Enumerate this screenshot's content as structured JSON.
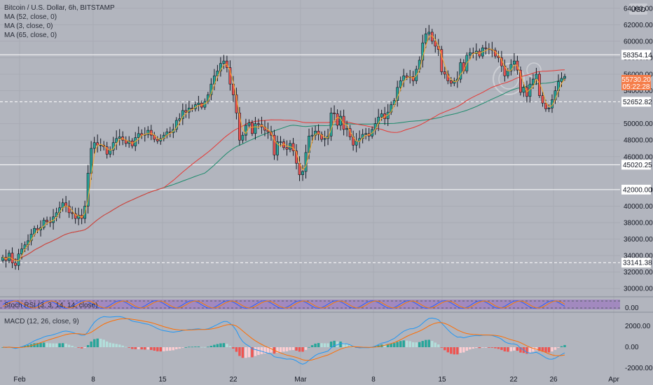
{
  "header": {
    "title": "Bitcoin / U.S. Dollar, 6h, BITSTAMP",
    "currency": "USD",
    "ma_labels": [
      "MA (52, close, 0)",
      "MA (3, close, 0)",
      "MA (65, close, 0)"
    ]
  },
  "stoch": {
    "label": "Stoch RSI (3, 3, 14, 14, close)",
    "tick": "0.00"
  },
  "macd": {
    "label": "MACD (12, 26, close, 9)",
    "ticks": [
      "2000.00",
      "0.00",
      "-2000.00"
    ]
  },
  "current": {
    "price": "55730.20",
    "countdown": "05:22:28"
  },
  "colors": {
    "up": "#26a69a",
    "down": "#ef5350",
    "ma52": "#e53935",
    "ma3": "#f9a825",
    "ma65": "#1b8a6b",
    "stoch_k": "#2962ff",
    "stoch_d": "#f57c00",
    "macd_line": "#2196f3",
    "signal_line": "#ff6d00",
    "current_tag": "#f57c48"
  },
  "chart_data": {
    "type": "candlestick",
    "price_axis": {
      "ylim": [
        29000,
        65000
      ],
      "ticks": [
        "64000.00",
        "62000.00",
        "60000.00",
        "58000.00",
        "56000.00",
        "54000.00",
        "50000.00",
        "48000.00",
        "46000.00",
        "42000.00",
        "40000.00",
        "38000.00",
        "36000.00",
        "34000.00",
        "32000.00",
        "30000.00"
      ]
    },
    "x_ticks": [
      "Feb",
      "8",
      "15",
      "22",
      "Mar",
      "8",
      "15",
      "22",
      "26",
      "Apr"
    ],
    "horizontal_levels": [
      {
        "value": 58354.14,
        "label": "58354.14",
        "style": "solid"
      },
      {
        "value": 52652.82,
        "label": "52652.82",
        "style": "dashed"
      },
      {
        "value": 45020.25,
        "label": "45020.25",
        "style": "solid"
      },
      {
        "value": 42000.0,
        "label": "42000.00",
        "style": "solid"
      },
      {
        "value": 33141.38,
        "label": "33141.38",
        "style": "dashed"
      }
    ],
    "closes": [
      33800,
      33400,
      34300,
      33100,
      32800,
      34200,
      34800,
      35300,
      35800,
      36600,
      37300,
      37100,
      37400,
      38300,
      38100,
      38000,
      38700,
      39200,
      39800,
      40400,
      40000,
      39200,
      39100,
      38500,
      38900,
      38500,
      40000,
      44000,
      47000,
      47700,
      47400,
      47400,
      47200,
      46300,
      46800,
      47700,
      48200,
      48400,
      48000,
      47600,
      47900,
      47300,
      48300,
      48800,
      48600,
      48700,
      49200,
      48600,
      48100,
      47900,
      48200,
      48600,
      49000,
      48900,
      49300,
      50400,
      50600,
      51600,
      51400,
      51900,
      51800,
      52300,
      52500,
      52000,
      52700,
      53500,
      54800,
      55800,
      56400,
      57300,
      57600,
      56800,
      54800,
      53500,
      51300,
      48000,
      48600,
      49800,
      50100,
      48800,
      50000,
      49900,
      49600,
      49200,
      49000,
      48600,
      46200,
      47800,
      47800,
      47100,
      46900,
      47600,
      46700,
      45200,
      43800,
      44200,
      46500,
      48500,
      48600,
      49100,
      48700,
      48100,
      48200,
      48500,
      51300,
      51200,
      49800,
      50900,
      49300,
      49400,
      48400,
      47400,
      47900,
      48200,
      48700,
      48800,
      48500,
      49300,
      50000,
      50800,
      51200,
      50600,
      51400,
      52300,
      52800,
      54400,
      55200,
      55800,
      55600,
      55700,
      55200,
      56600,
      57700,
      59800,
      60900,
      61100,
      60000,
      59400,
      59000,
      56300,
      56000,
      55200,
      54900,
      55200,
      55400,
      57400,
      56400,
      58300,
      58600,
      58500,
      58800,
      58200,
      59200,
      59100,
      59000,
      58900,
      58200,
      58000,
      57000,
      55800,
      56400,
      57200,
      57600,
      56500,
      53800,
      54400,
      53300,
      54800,
      55400,
      56000,
      53400,
      52500,
      51800,
      51900,
      52900,
      54000,
      55100,
      55500,
      55730
    ]
  }
}
